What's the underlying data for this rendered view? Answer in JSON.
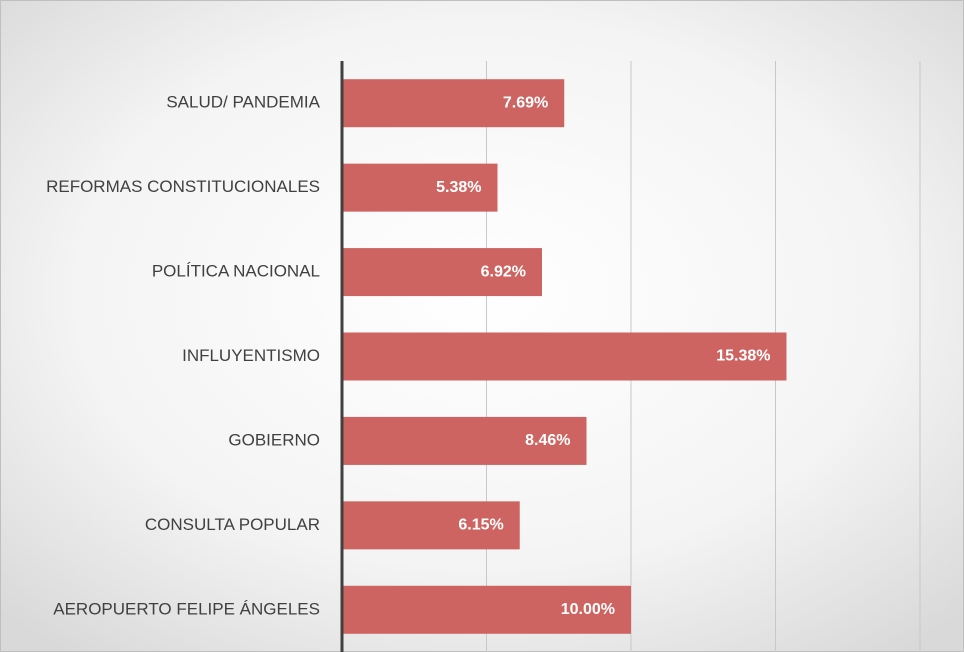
{
  "chart_data": {
    "type": "bar",
    "orientation": "horizontal",
    "categories": [
      "SALUD/ PANDEMIA",
      "REFORMAS CONSTITUCIONALES",
      "POLÍTICA NACIONAL",
      "INFLUYENTISMO",
      "GOBIERNO",
      "CONSULTA POPULAR",
      "AEROPUERTO FELIPE ÁNGELES"
    ],
    "values": [
      7.69,
      5.38,
      6.92,
      15.38,
      8.46,
      6.15,
      10.0
    ],
    "value_labels": [
      "7.69%",
      "5.38%",
      "6.92%",
      "15.38%",
      "8.46%",
      "6.15%",
      "10.00%"
    ],
    "color": "#cd6461",
    "xlim": [
      0,
      20
    ],
    "xticks": [
      0,
      5,
      10,
      15,
      20
    ],
    "grid": true
  }
}
